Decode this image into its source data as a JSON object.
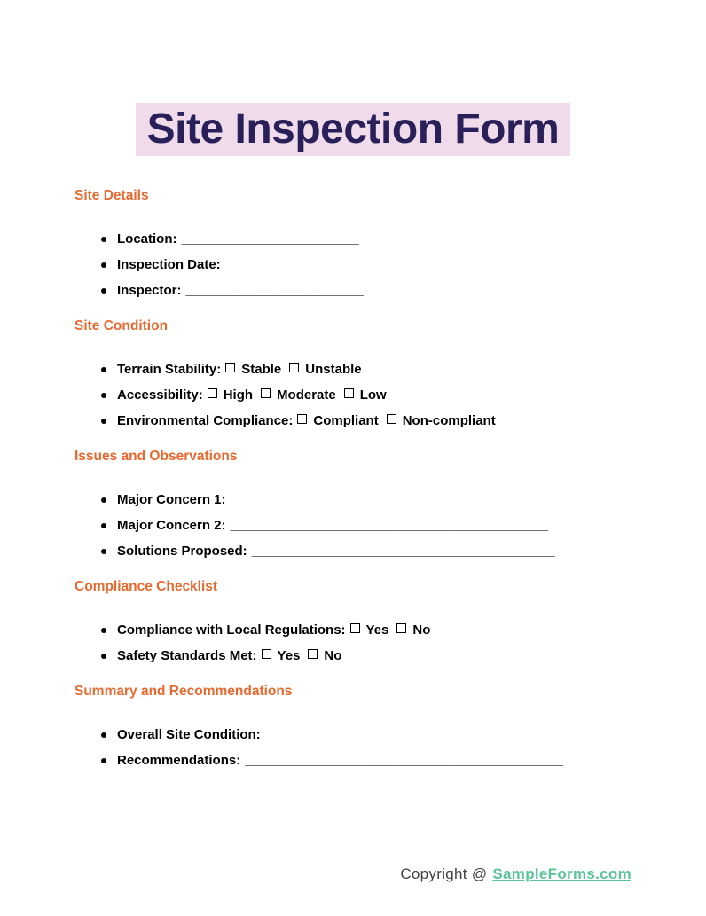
{
  "title": {
    "text": "Site Inspection Form"
  },
  "colors": {
    "title-bg": "#efdbe9",
    "title-color": "#2a2059",
    "heading-color": "#e8692f",
    "brand-color": "#5cc499"
  },
  "sections": [
    {
      "heading": "Site Details",
      "items": [
        {
          "label": "Location:",
          "blank": "________________________"
        },
        {
          "label": "Inspection Date:",
          "blank": "________________________"
        },
        {
          "label": "Inspector:",
          "blank": "________________________"
        }
      ]
    },
    {
      "heading": "Site Condition",
      "items": [
        {
          "label": "Terrain Stability:",
          "options": [
            "Stable",
            "Unstable"
          ]
        },
        {
          "label": "Accessibility:",
          "options": [
            "High",
            "Moderate",
            "Low"
          ]
        },
        {
          "label": "Environmental Compliance:",
          "options": [
            "Compliant",
            "Non-compliant"
          ]
        }
      ]
    },
    {
      "heading": "Issues and Observations",
      "items": [
        {
          "label": "Major Concern 1:",
          "blank": "___________________________________________"
        },
        {
          "label": "Major Concern 2:",
          "blank": "___________________________________________"
        },
        {
          "label": "Solutions Proposed:",
          "blank": "_________________________________________"
        }
      ]
    },
    {
      "heading": "Compliance Checklist",
      "items": [
        {
          "label": "Compliance with Local Regulations:",
          "options": [
            "Yes",
            "No"
          ]
        },
        {
          "label": "Safety Standards Met:",
          "options": [
            "Yes",
            "No"
          ]
        }
      ]
    },
    {
      "heading": "Summary and Recommendations",
      "items": [
        {
          "label": "Overall Site Condition:",
          "blank": "___________________________________"
        },
        {
          "label": "Recommendations:",
          "blank": "___________________________________________"
        }
      ]
    }
  ],
  "footer": {
    "copyright_prefix": "Copyright @",
    "brand": "SampleForms.com"
  }
}
